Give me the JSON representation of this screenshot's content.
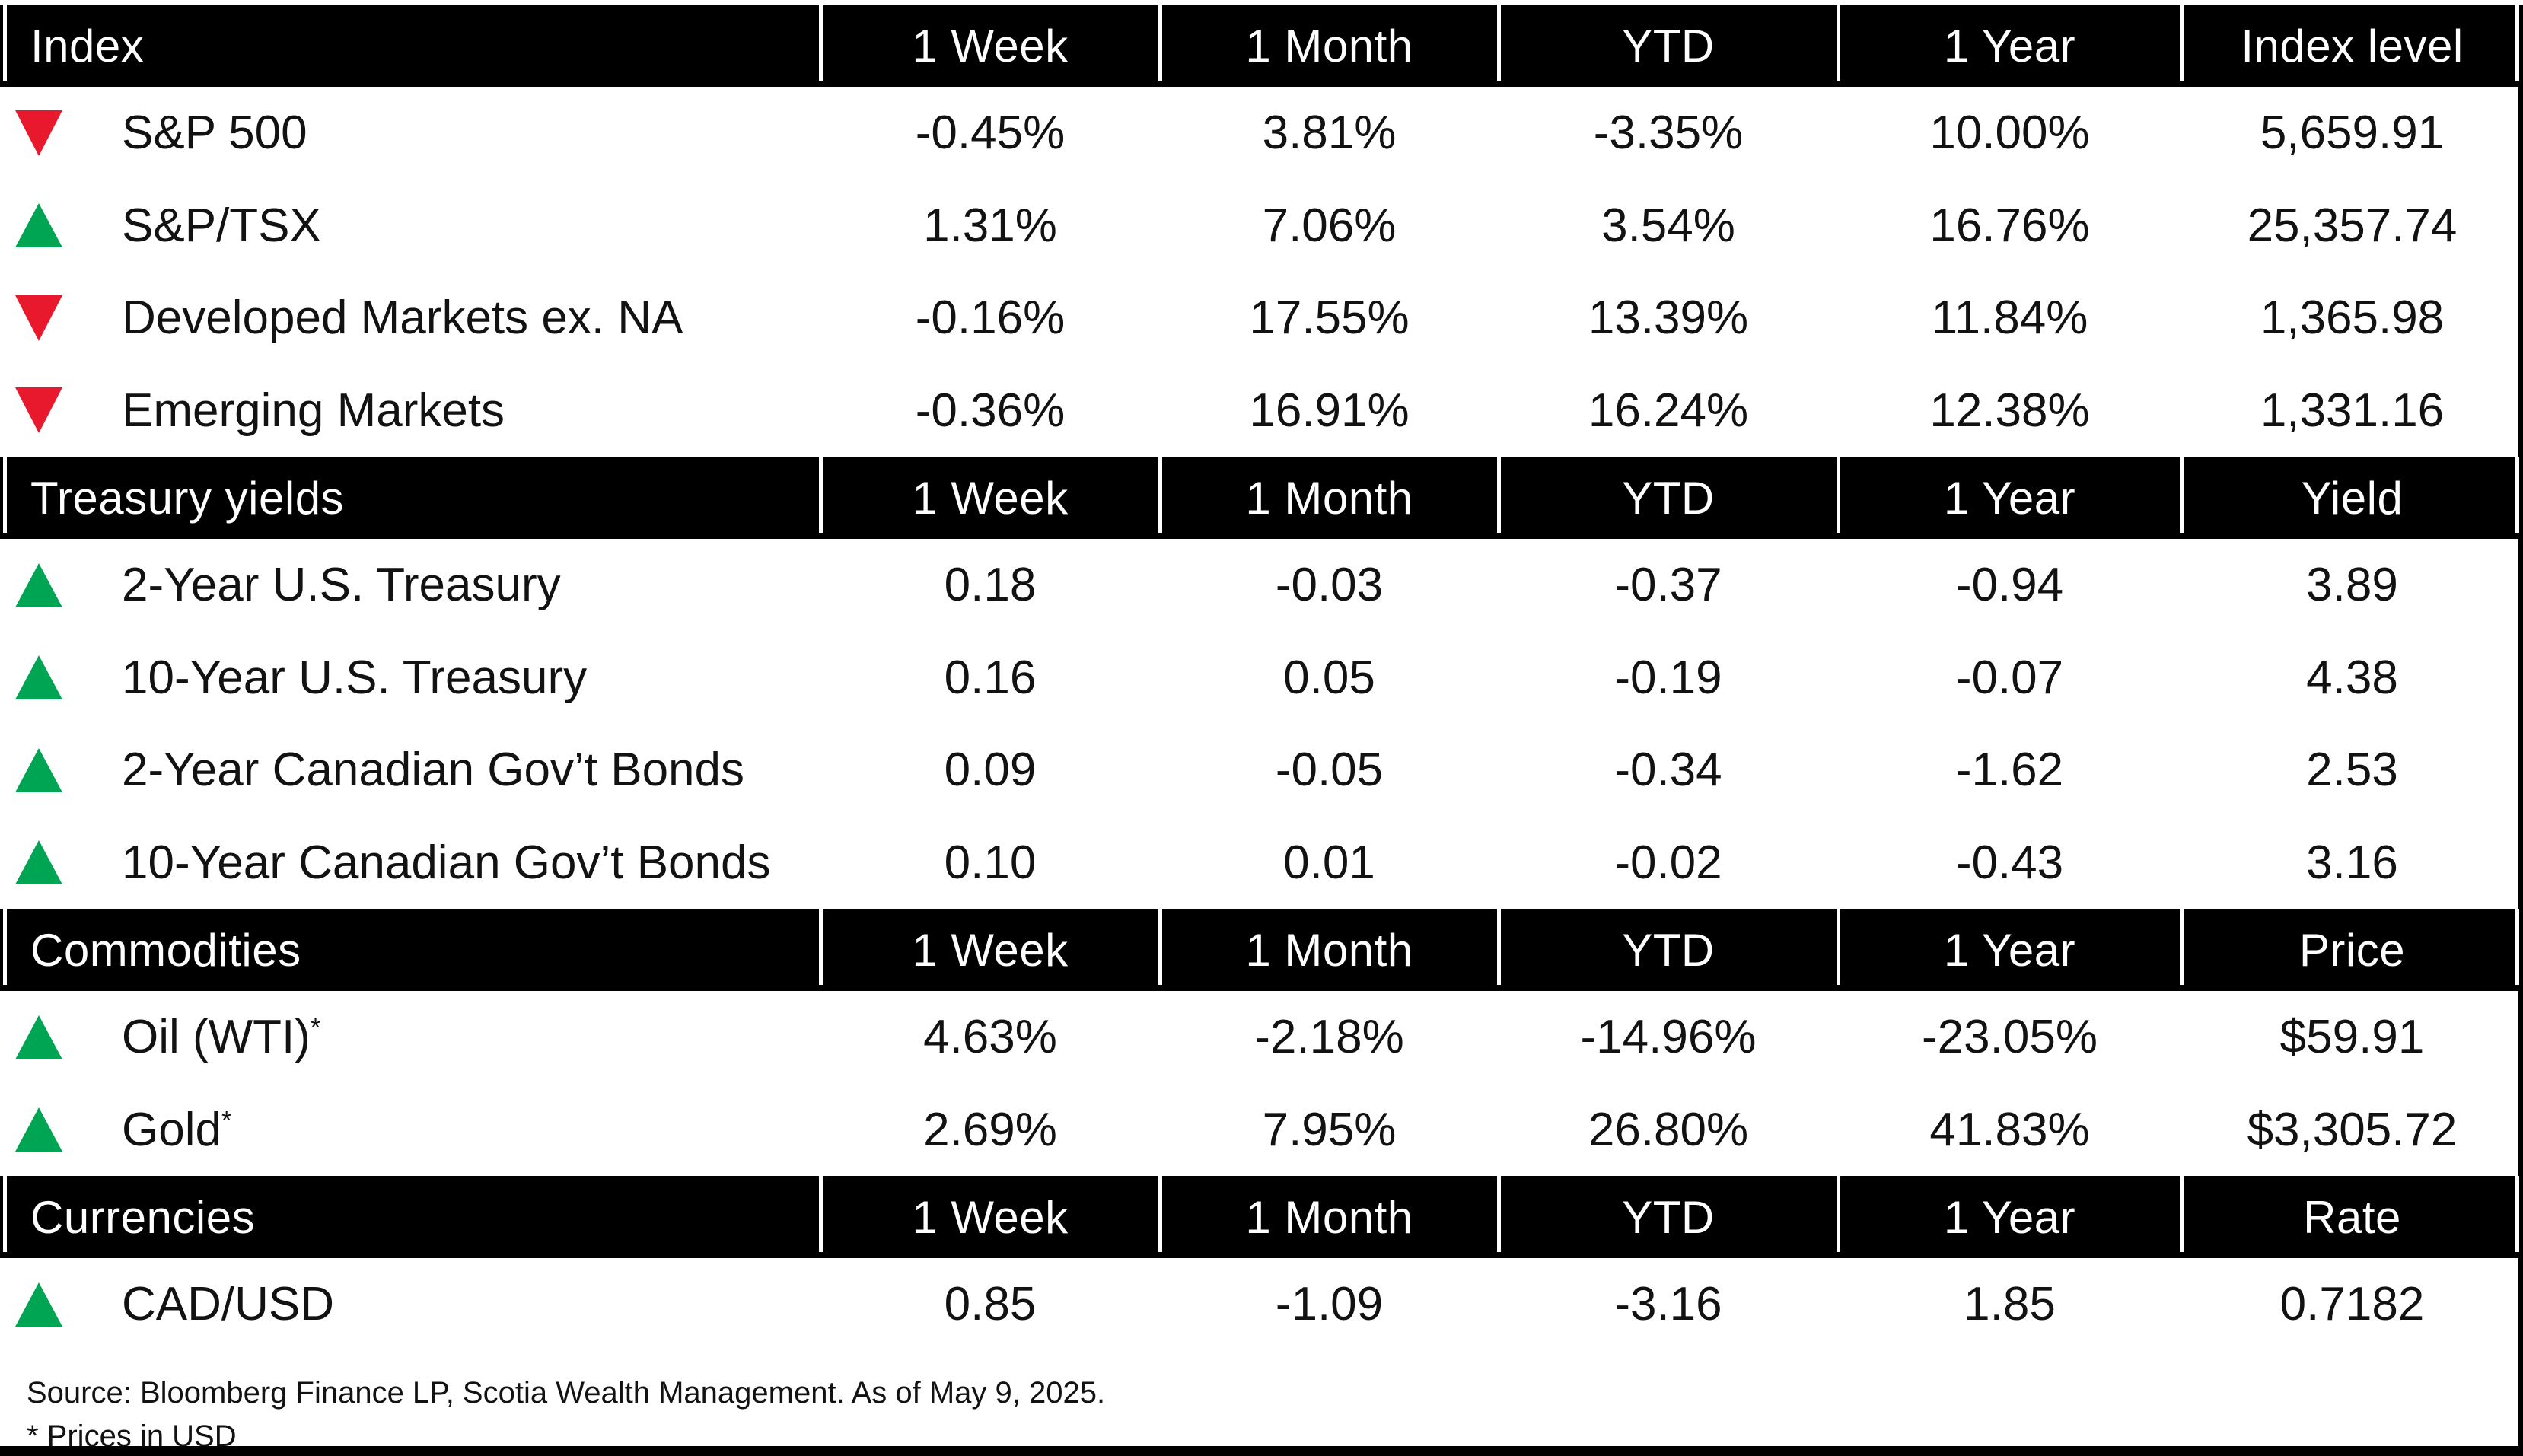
{
  "colors": {
    "up_green": "#00a553",
    "down_red": "#e8192d",
    "header_bg": "#000000",
    "text": "#121212"
  },
  "table": {
    "sections": [
      {
        "header": {
          "label": "Index",
          "cols": [
            "1 Week",
            "1 Month",
            "YTD",
            "1 Year",
            "Index level"
          ]
        },
        "rows": [
          {
            "direction": "down",
            "label": "S&P 500",
            "sup": "",
            "values": [
              "-0.45%",
              "3.81%",
              "-3.35%",
              "10.00%",
              "5,659.91"
            ]
          },
          {
            "direction": "up",
            "label": "S&P/TSX",
            "sup": "",
            "values": [
              "1.31%",
              "7.06%",
              "3.54%",
              "16.76%",
              "25,357.74"
            ]
          },
          {
            "direction": "down",
            "label": "Developed Markets ex. NA",
            "sup": "",
            "values": [
              "-0.16%",
              "17.55%",
              "13.39%",
              "11.84%",
              "1,365.98"
            ]
          },
          {
            "direction": "down",
            "label": "Emerging Markets",
            "sup": "",
            "values": [
              "-0.36%",
              "16.91%",
              "16.24%",
              "12.38%",
              "1,331.16"
            ]
          }
        ]
      },
      {
        "header": {
          "label": "Treasury yields",
          "cols": [
            "1 Week",
            "1 Month",
            "YTD",
            "1 Year",
            "Yield"
          ]
        },
        "rows": [
          {
            "direction": "up",
            "label": "2-Year U.S. Treasury",
            "sup": "",
            "values": [
              "0.18",
              "-0.03",
              "-0.37",
              "-0.94",
              "3.89"
            ]
          },
          {
            "direction": "up",
            "label": "10-Year U.S. Treasury",
            "sup": "",
            "values": [
              "0.16",
              "0.05",
              "-0.19",
              "-0.07",
              "4.38"
            ]
          },
          {
            "direction": "up",
            "label": "2-Year Canadian Gov’t Bonds",
            "sup": "",
            "values": [
              "0.09",
              "-0.05",
              "-0.34",
              "-1.62",
              "2.53"
            ]
          },
          {
            "direction": "up",
            "label": "10-Year Canadian Gov’t Bonds",
            "sup": "",
            "values": [
              "0.10",
              "0.01",
              "-0.02",
              "-0.43",
              "3.16"
            ]
          }
        ]
      },
      {
        "header": {
          "label": "Commodities",
          "cols": [
            "1 Week",
            "1 Month",
            "YTD",
            "1 Year",
            "Price"
          ]
        },
        "rows": [
          {
            "direction": "up",
            "label": "Oil (WTI)",
            "sup": "*",
            "values": [
              "4.63%",
              "-2.18%",
              "-14.96%",
              "-23.05%",
              "$59.91"
            ]
          },
          {
            "direction": "up",
            "label": "Gold",
            "sup": "*",
            "values": [
              "2.69%",
              "7.95%",
              "26.80%",
              "41.83%",
              "$3,305.72"
            ]
          }
        ]
      },
      {
        "header": {
          "label": "Currencies",
          "cols": [
            "1 Week",
            "1 Month",
            "YTD",
            "1 Year",
            "Rate"
          ]
        },
        "rows": [
          {
            "direction": "up",
            "label": "CAD/USD",
            "sup": "",
            "values": [
              "0.85",
              "-1.09",
              "-3.16",
              "1.85",
              "0.7182"
            ]
          }
        ]
      }
    ]
  },
  "footer": {
    "source": "Source: Bloomberg Finance LP, Scotia Wealth Management. As of May 9, 2025.",
    "note": "* Prices in USD"
  },
  "chart_data": {
    "type": "table",
    "sections": [
      {
        "title": "Index",
        "columns": [
          "1 Week",
          "1 Month",
          "YTD",
          "1 Year",
          "Index level"
        ],
        "rows": [
          {
            "name": "S&P 500",
            "direction": "down",
            "one_week": -0.45,
            "one_month": 3.81,
            "ytd": -3.35,
            "one_year": 10.0,
            "level": 5659.91
          },
          {
            "name": "S&P/TSX",
            "direction": "up",
            "one_week": 1.31,
            "one_month": 7.06,
            "ytd": 3.54,
            "one_year": 16.76,
            "level": 25357.74
          },
          {
            "name": "Developed Markets ex. NA",
            "direction": "down",
            "one_week": -0.16,
            "one_month": 17.55,
            "ytd": 13.39,
            "one_year": 11.84,
            "level": 1365.98
          },
          {
            "name": "Emerging Markets",
            "direction": "down",
            "one_week": -0.36,
            "one_month": 16.91,
            "ytd": 16.24,
            "one_year": 12.38,
            "level": 1331.16
          }
        ]
      },
      {
        "title": "Treasury yields",
        "columns": [
          "1 Week",
          "1 Month",
          "YTD",
          "1 Year",
          "Yield"
        ],
        "rows": [
          {
            "name": "2-Year U.S. Treasury",
            "direction": "up",
            "one_week": 0.18,
            "one_month": -0.03,
            "ytd": -0.37,
            "one_year": -0.94,
            "yield": 3.89
          },
          {
            "name": "10-Year U.S. Treasury",
            "direction": "up",
            "one_week": 0.16,
            "one_month": 0.05,
            "ytd": -0.19,
            "one_year": -0.07,
            "yield": 4.38
          },
          {
            "name": "2-Year Canadian Gov’t Bonds",
            "direction": "up",
            "one_week": 0.09,
            "one_month": -0.05,
            "ytd": -0.34,
            "one_year": -1.62,
            "yield": 2.53
          },
          {
            "name": "10-Year Canadian Gov’t Bonds",
            "direction": "up",
            "one_week": 0.1,
            "one_month": 0.01,
            "ytd": -0.02,
            "one_year": -0.43,
            "yield": 3.16
          }
        ]
      },
      {
        "title": "Commodities",
        "columns": [
          "1 Week",
          "1 Month",
          "YTD",
          "1 Year",
          "Price"
        ],
        "rows": [
          {
            "name": "Oil (WTI)*",
            "direction": "up",
            "one_week": 4.63,
            "one_month": -2.18,
            "ytd": -14.96,
            "one_year": -23.05,
            "price_usd": 59.91
          },
          {
            "name": "Gold*",
            "direction": "up",
            "one_week": 2.69,
            "one_month": 7.95,
            "ytd": 26.8,
            "one_year": 41.83,
            "price_usd": 3305.72
          }
        ]
      },
      {
        "title": "Currencies",
        "columns": [
          "1 Week",
          "1 Month",
          "YTD",
          "1 Year",
          "Rate"
        ],
        "rows": [
          {
            "name": "CAD/USD",
            "direction": "up",
            "one_week": 0.85,
            "one_month": -1.09,
            "ytd": -3.16,
            "one_year": 1.85,
            "rate": 0.7182
          }
        ]
      }
    ]
  }
}
